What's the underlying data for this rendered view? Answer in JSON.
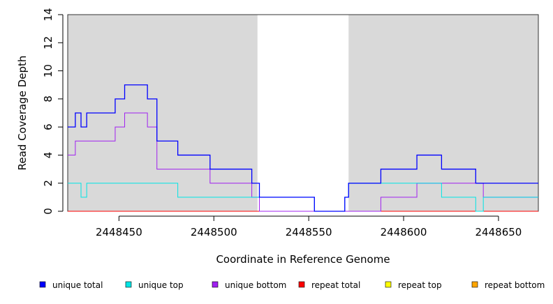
{
  "chart_data": {
    "type": "line",
    "step": true,
    "xlabel": "Coordinate in Reference Genome",
    "ylabel": "Read Coverage Depth",
    "xlim": [
      2448423,
      2448671
    ],
    "ylim": [
      0,
      14
    ],
    "x_ticks": [
      2448450,
      2448500,
      2448550,
      2448600,
      2448650
    ],
    "x_tick_labels": [
      "2448450",
      "2448500",
      "2448550",
      "2448600",
      "2448650"
    ],
    "y_ticks": [
      0,
      2,
      4,
      6,
      8,
      10,
      12,
      14
    ],
    "y_tick_labels": [
      "0",
      "2",
      "4",
      "6",
      "8",
      "10",
      "12",
      "14"
    ],
    "shaded_regions": [
      {
        "x_start": 2448423,
        "x_end": 2448523,
        "color": "#d9d9d9"
      },
      {
        "x_start": 2448571,
        "x_end": 2448671,
        "color": "#d9d9d9"
      }
    ],
    "legend_position": "bottom",
    "series": [
      {
        "name": "unique total",
        "color": "#0000ff",
        "points": [
          [
            2448423,
            6
          ],
          [
            2448427,
            7
          ],
          [
            2448430,
            6
          ],
          [
            2448433,
            7
          ],
          [
            2448448,
            8
          ],
          [
            2448453,
            9
          ],
          [
            2448465,
            8
          ],
          [
            2448470,
            5
          ],
          [
            2448481,
            4
          ],
          [
            2448498,
            3
          ],
          [
            2448520,
            2
          ],
          [
            2448524,
            1
          ],
          [
            2448553,
            0
          ],
          [
            2448569,
            1
          ],
          [
            2448571,
            2
          ],
          [
            2448588,
            3
          ],
          [
            2448607,
            4
          ],
          [
            2448620,
            3
          ],
          [
            2448638,
            2
          ],
          [
            2448671,
            2
          ]
        ]
      },
      {
        "name": "unique top",
        "color": "#00e5e5",
        "points": [
          [
            2448423,
            2
          ],
          [
            2448430,
            1
          ],
          [
            2448433,
            2
          ],
          [
            2448481,
            1
          ],
          [
            2448524,
            1
          ],
          [
            2448553,
            0
          ],
          [
            2448569,
            1
          ],
          [
            2448571,
            2
          ],
          [
            2448620,
            1
          ],
          [
            2448638,
            0
          ],
          [
            2448642,
            1
          ],
          [
            2448671,
            1
          ]
        ]
      },
      {
        "name": "unique bottom",
        "color": "#a020f0",
        "points": [
          [
            2448423,
            4
          ],
          [
            2448427,
            5
          ],
          [
            2448448,
            6
          ],
          [
            2448453,
            7
          ],
          [
            2448465,
            6
          ],
          [
            2448470,
            3
          ],
          [
            2448498,
            2
          ],
          [
            2448520,
            1
          ],
          [
            2448524,
            0
          ],
          [
            2448588,
            1
          ],
          [
            2448607,
            2
          ],
          [
            2448642,
            1
          ],
          [
            2448671,
            1
          ]
        ]
      },
      {
        "name": "repeat total",
        "color": "#ff0000",
        "points": [
          [
            2448423,
            0
          ],
          [
            2448671,
            0
          ]
        ]
      },
      {
        "name": "repeat top",
        "color": "#ffff00",
        "points": [
          [
            2448423,
            0
          ],
          [
            2448671,
            0
          ]
        ]
      },
      {
        "name": "repeat bottom",
        "color": "#ffa500",
        "points": [
          [
            2448423,
            0
          ],
          [
            2448671,
            0
          ]
        ]
      }
    ]
  }
}
